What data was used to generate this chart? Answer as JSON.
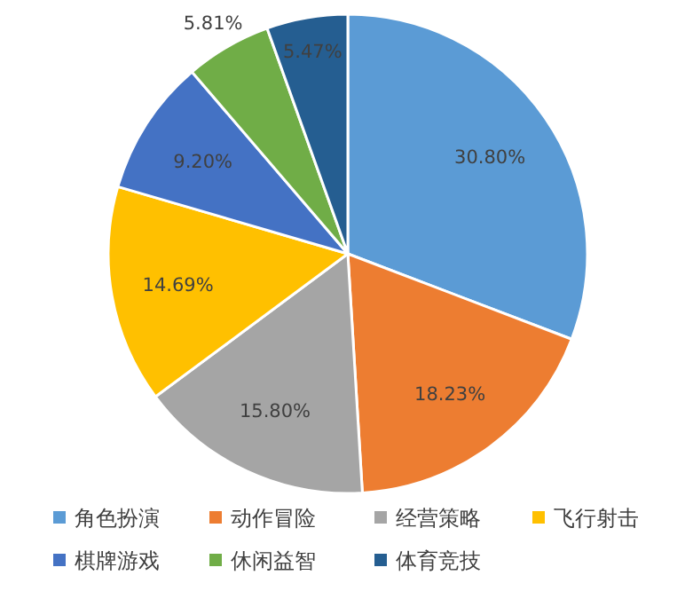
{
  "chart_data": {
    "type": "pie",
    "categories": [
      "角色扮演",
      "动作冒险",
      "经营策略",
      "飞行射击",
      "棋牌游戏",
      "休闲益智",
      "体育竞技"
    ],
    "values": [
      30.8,
      18.23,
      15.8,
      14.69,
      9.2,
      5.81,
      5.47
    ],
    "colors": [
      "#5b9bd5",
      "#ed7d31",
      "#a5a5a5",
      "#ffc000",
      "#4472c4",
      "#70ad47",
      "#255e91"
    ],
    "value_labels": [
      "30.80%",
      "18.23%",
      "15.80%",
      "14.69%",
      "9.20%",
      "5.81%",
      "5.47%"
    ],
    "legend": "bottom"
  }
}
